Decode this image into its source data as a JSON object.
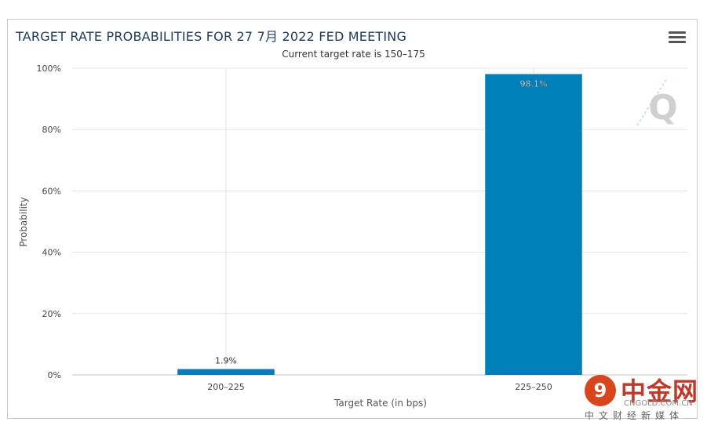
{
  "header": {
    "title": "TARGET RATE PROBABILITIES FOR 27 7月 2022 FED MEETING",
    "subtitle": "Current target rate is 150–175"
  },
  "watermark": {
    "glyph": "Q",
    "logo_char": "9",
    "brand_cn": "中金网",
    "url": "CNGOLD.COM.CN",
    "tagline": "中文财经新媒体"
  },
  "chart_data": {
    "type": "bar",
    "title": "TARGET RATE PROBABILITIES FOR 27 7月 2022 FED MEETING",
    "subtitle": "Current target rate is 150–175",
    "categories": [
      "200–225",
      "225–250"
    ],
    "values": [
      1.9,
      98.1
    ],
    "data_labels": [
      "1.9%",
      "98.1%"
    ],
    "xlabel": "Target Rate (in bps)",
    "ylabel": "Probability",
    "ylim": [
      0,
      100
    ],
    "yticks": [
      "0%",
      "20%",
      "40%",
      "60%",
      "80%",
      "100%"
    ],
    "grid": true,
    "bar_color": "#0080b8"
  }
}
